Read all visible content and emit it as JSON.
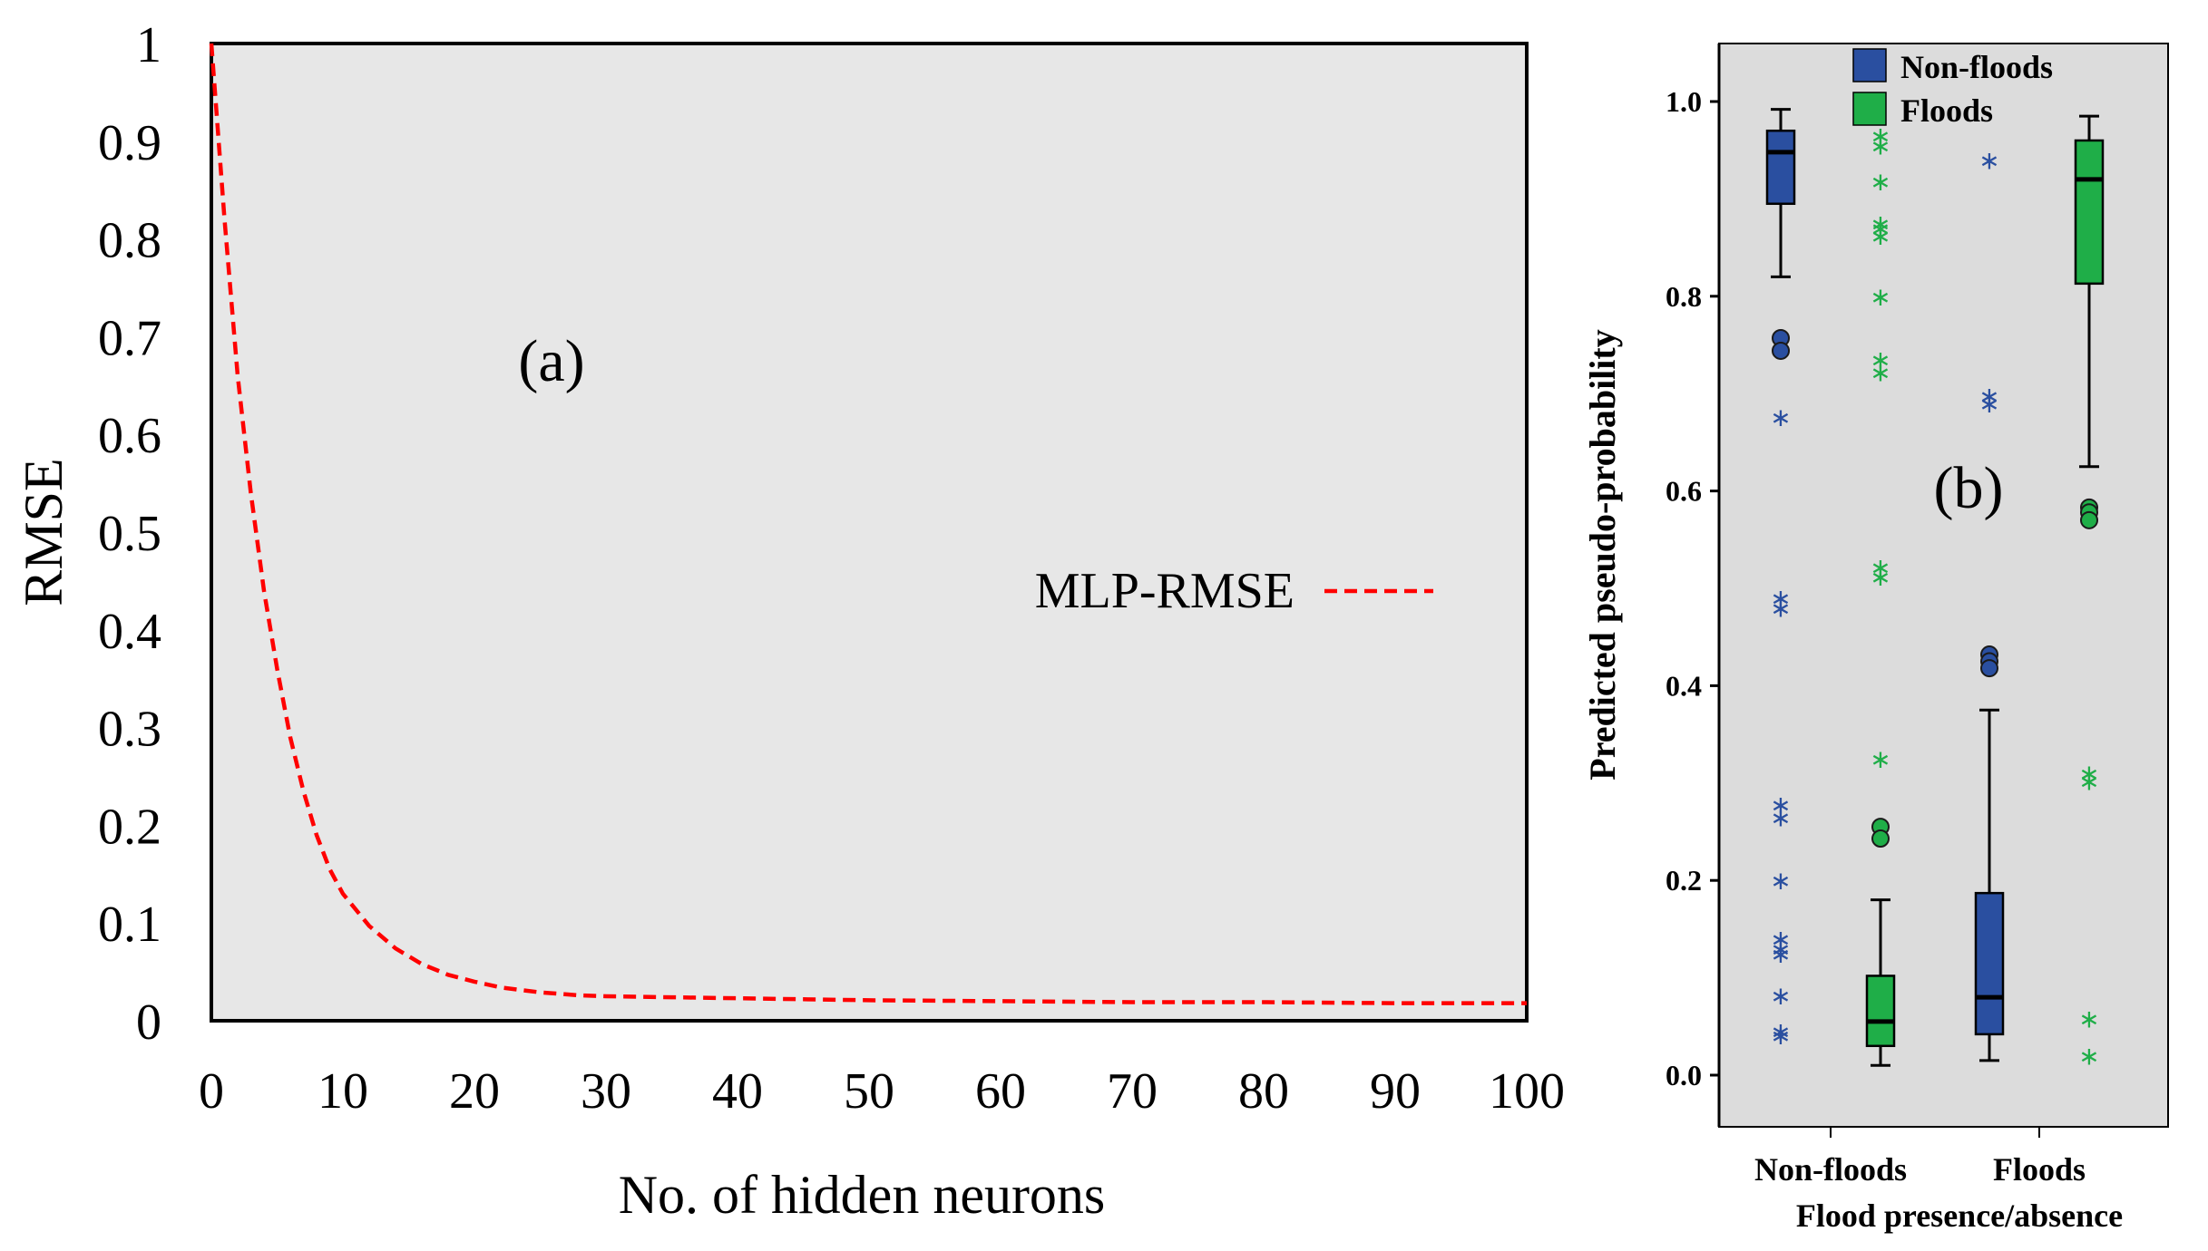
{
  "chart_data": [
    {
      "type": "line",
      "panel_label": "(a)",
      "xlabel": "No. of hidden neurons",
      "ylabel": "RMSE",
      "xlim": [
        0,
        100
      ],
      "ylim": [
        0,
        1
      ],
      "x_ticks": [
        "0",
        "10",
        "20",
        "30",
        "40",
        "50",
        "60",
        "70",
        "80",
        "90",
        "100"
      ],
      "y_ticks": [
        "0",
        "0.1",
        "0.2",
        "0.3",
        "0.4",
        "0.5",
        "0.6",
        "0.7",
        "0.8",
        "0.9",
        "1"
      ],
      "legend_position": "right",
      "grid": false,
      "colors": {
        "plot_bg": "#e7e7e7",
        "line": "#ff0000"
      },
      "series": [
        {
          "name": "MLP-RMSE",
          "style": "dashed",
          "x": [
            0,
            1,
            2,
            3,
            4,
            5,
            6,
            7,
            8,
            9,
            10,
            12,
            14,
            16,
            18,
            20,
            22,
            25,
            28,
            30,
            35,
            40,
            45,
            50,
            60,
            70,
            80,
            90,
            100
          ],
          "y": [
            1.0,
            0.82,
            0.66,
            0.54,
            0.44,
            0.36,
            0.29,
            0.235,
            0.19,
            0.155,
            0.13,
            0.097,
            0.074,
            0.058,
            0.047,
            0.04,
            0.034,
            0.029,
            0.026,
            0.025,
            0.024,
            0.023,
            0.022,
            0.021,
            0.02,
            0.019,
            0.019,
            0.018,
            0.018
          ]
        }
      ]
    },
    {
      "type": "box",
      "panel_label": "(b)",
      "xlabel": "Flood presence/absence",
      "ylabel": "Predicted pseudo-probability",
      "categories": [
        "Non-floods",
        "Floods"
      ],
      "ylim": [
        0,
        1.05
      ],
      "y_ticks": [
        "0.0",
        "0.2",
        "0.4",
        "0.6",
        "0.8",
        "1.0"
      ],
      "legend_position": "top",
      "grid": false,
      "colors": {
        "plot_bg": "#dcdcdc",
        "Non-floods": "#2a4fa0",
        "Floods": "#1fae48"
      },
      "series": [
        {
          "name": "Non-floods",
          "boxes": [
            {
              "category": "Non-floods",
              "min": 0.82,
              "q1": 0.895,
              "median": 0.948,
              "q3": 0.97,
              "max": 0.992,
              "outliers_circle": [
                0.757,
                0.744
              ],
              "outliers_star": [
                0.676,
                0.49,
                0.48,
                0.278,
                0.265,
                0.2,
                0.14,
                0.13,
                0.125,
                0.082,
                0.045,
                0.041
              ]
            },
            {
              "category": "Floods",
              "min": 0.015,
              "q1": 0.042,
              "median": 0.08,
              "q3": 0.187,
              "max": 0.375,
              "outliers_circle": [
                0.432,
                0.425,
                0.418
              ],
              "outliers_star": [
                0.94,
                0.698,
                0.69
              ]
            }
          ]
        },
        {
          "name": "Floods",
          "boxes": [
            {
              "category": "Non-floods",
              "min": 0.01,
              "q1": 0.03,
              "median": 0.055,
              "q3": 0.102,
              "max": 0.18,
              "outliers_circle": [
                0.255,
                0.243
              ],
              "outliers_star": [
                0.965,
                0.955,
                0.918,
                0.875,
                0.87,
                0.862,
                0.8,
                0.735,
                0.722,
                0.522,
                0.512,
                0.325
              ]
            },
            {
              "category": "Floods",
              "min": 0.625,
              "q1": 0.813,
              "median": 0.92,
              "q3": 0.96,
              "max": 0.985,
              "outliers_circle": [
                0.583,
                0.578,
                0.57
              ],
              "outliers_star": [
                0.31,
                0.302,
                0.058,
                0.02
              ]
            }
          ]
        }
      ]
    }
  ]
}
